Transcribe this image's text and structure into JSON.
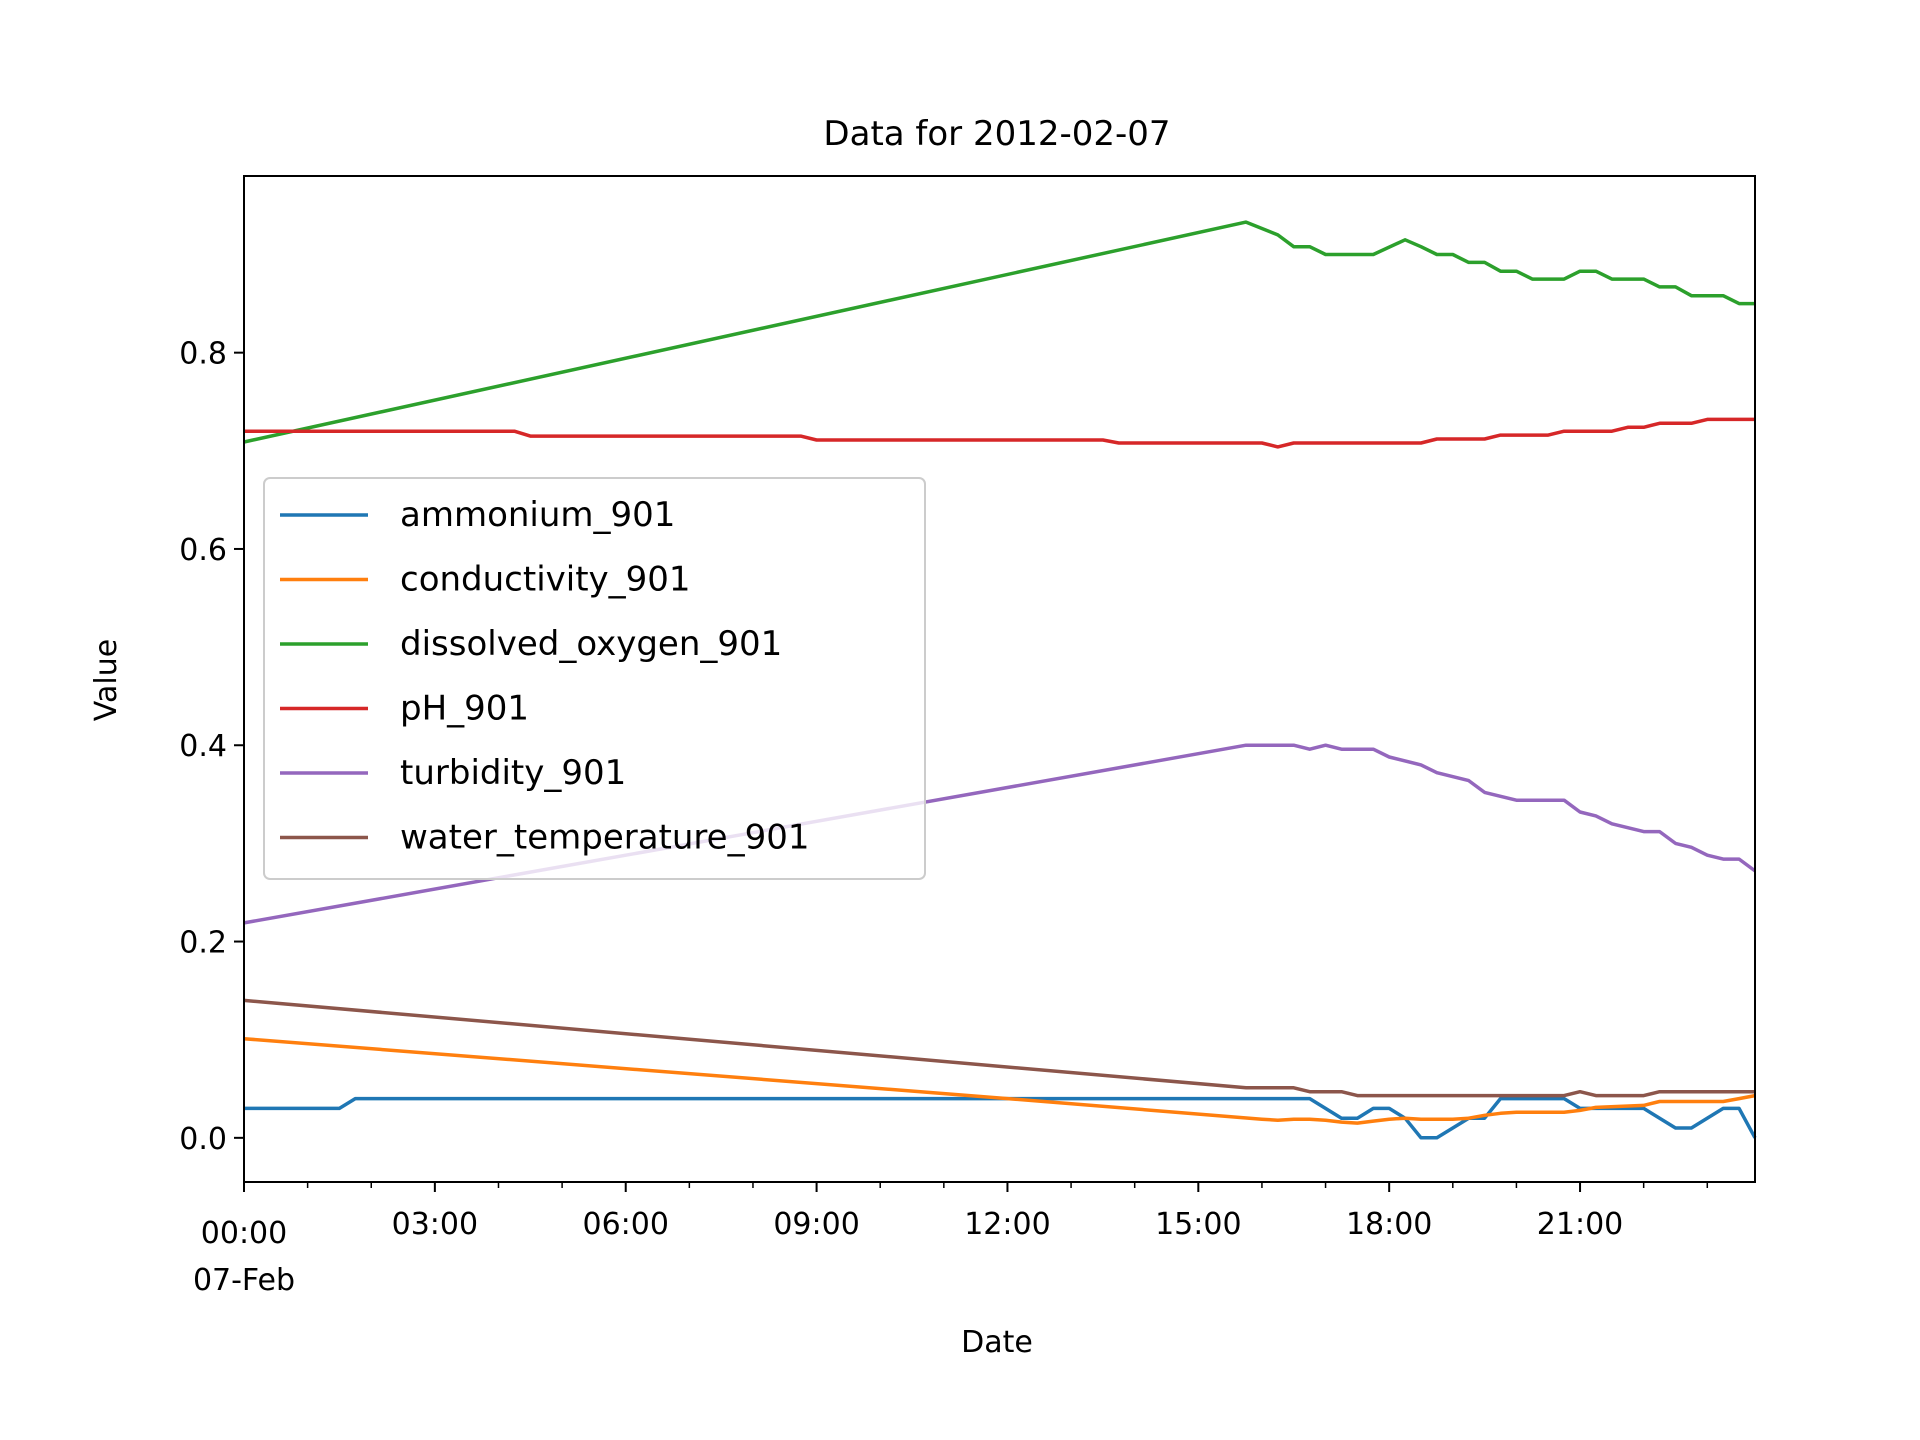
{
  "chart_data": {
    "type": "line",
    "title": "Data for 2012-02-07",
    "xlabel": "Date",
    "ylabel": "Value",
    "xlim": [
      "2012-02-07 00:00",
      "2012-02-07 23:45"
    ],
    "ylim": [
      -0.045,
      0.98
    ],
    "x_tick_labels": [
      "00:00",
      "03:00",
      "06:00",
      "09:00",
      "12:00",
      "15:00",
      "18:00",
      "21:00"
    ],
    "x_tick_sublabel": "07-Feb",
    "y_tick_labels": [
      "0.0",
      "0.2",
      "0.4",
      "0.6",
      "0.8"
    ],
    "grid": false,
    "legend_position": "center-left",
    "series": [
      {
        "name": "ammonium_901",
        "color": "#1f77b4",
        "points": [
          [
            "00:00",
            0.03
          ],
          [
            "01:30",
            0.03
          ],
          [
            "01:45",
            0.04
          ],
          [
            "16:45",
            0.04
          ],
          [
            "17:15",
            0.02
          ],
          [
            "17:30",
            0.02
          ],
          [
            "17:45",
            0.03
          ],
          [
            "18:00",
            0.03
          ],
          [
            "18:15",
            0.02
          ],
          [
            "18:30",
            0.0
          ],
          [
            "18:45",
            0.0
          ],
          [
            "19:15",
            0.02
          ],
          [
            "19:30",
            0.02
          ],
          [
            "19:45",
            0.04
          ],
          [
            "20:45",
            0.04
          ],
          [
            "21:00",
            0.03
          ],
          [
            "22:00",
            0.03
          ],
          [
            "22:30",
            0.01
          ],
          [
            "22:45",
            0.01
          ],
          [
            "23:15",
            0.03
          ],
          [
            "23:30",
            0.03
          ],
          [
            "23:45",
            0.0
          ]
        ]
      },
      {
        "name": "conductivity_901",
        "color": "#ff7f0e",
        "points": [
          [
            "00:00",
            0.101
          ],
          [
            "12:00",
            0.04
          ],
          [
            "16:00",
            0.019
          ],
          [
            "16:15",
            0.018
          ],
          [
            "16:30",
            0.019
          ],
          [
            "16:45",
            0.019
          ],
          [
            "17:00",
            0.018
          ],
          [
            "17:15",
            0.016
          ],
          [
            "17:30",
            0.015
          ],
          [
            "17:45",
            0.017
          ],
          [
            "18:00",
            0.019
          ],
          [
            "18:15",
            0.02
          ],
          [
            "18:30",
            0.019
          ],
          [
            "18:45",
            0.019
          ],
          [
            "19:00",
            0.019
          ],
          [
            "19:15",
            0.02
          ],
          [
            "19:30",
            0.023
          ],
          [
            "19:45",
            0.025
          ],
          [
            "20:00",
            0.026
          ],
          [
            "20:45",
            0.026
          ],
          [
            "21:00",
            0.028
          ],
          [
            "21:15",
            0.031
          ],
          [
            "22:00",
            0.033
          ],
          [
            "22:15",
            0.037
          ],
          [
            "23:15",
            0.037
          ],
          [
            "23:30",
            0.04
          ],
          [
            "23:45",
            0.043
          ]
        ]
      },
      {
        "name": "dissolved_oxygen_901",
        "color": "#2ca02c",
        "points": [
          [
            "00:00",
            0.709
          ],
          [
            "15:45",
            0.933
          ],
          [
            "16:15",
            0.92
          ],
          [
            "16:30",
            0.908
          ],
          [
            "16:45",
            0.908
          ],
          [
            "17:00",
            0.9
          ],
          [
            "17:45",
            0.9
          ],
          [
            "18:15",
            0.915
          ],
          [
            "18:30",
            0.908
          ],
          [
            "18:45",
            0.9
          ],
          [
            "19:00",
            0.9
          ],
          [
            "19:15",
            0.892
          ],
          [
            "19:30",
            0.892
          ],
          [
            "19:45",
            0.883
          ],
          [
            "20:00",
            0.883
          ],
          [
            "20:15",
            0.875
          ],
          [
            "20:45",
            0.875
          ],
          [
            "21:00",
            0.883
          ],
          [
            "21:15",
            0.883
          ],
          [
            "21:30",
            0.875
          ],
          [
            "22:00",
            0.875
          ],
          [
            "22:15",
            0.867
          ],
          [
            "22:30",
            0.867
          ],
          [
            "22:45",
            0.858
          ],
          [
            "23:15",
            0.858
          ],
          [
            "23:30",
            0.85
          ],
          [
            "23:45",
            0.85
          ]
        ]
      },
      {
        "name": "pH_901",
        "color": "#d62728",
        "points": [
          [
            "00:00",
            0.72
          ],
          [
            "04:15",
            0.72
          ],
          [
            "04:30",
            0.715
          ],
          [
            "08:45",
            0.715
          ],
          [
            "09:00",
            0.711
          ],
          [
            "13:30",
            0.711
          ],
          [
            "13:45",
            0.708
          ],
          [
            "16:00",
            0.708
          ],
          [
            "16:15",
            0.704
          ],
          [
            "16:30",
            0.708
          ],
          [
            "18:30",
            0.708
          ],
          [
            "18:45",
            0.712
          ],
          [
            "19:30",
            0.712
          ],
          [
            "19:45",
            0.716
          ],
          [
            "20:30",
            0.716
          ],
          [
            "20:45",
            0.72
          ],
          [
            "21:30",
            0.72
          ],
          [
            "21:45",
            0.724
          ],
          [
            "22:00",
            0.724
          ],
          [
            "22:15",
            0.728
          ],
          [
            "22:45",
            0.728
          ],
          [
            "23:00",
            0.732
          ],
          [
            "23:45",
            0.732
          ]
        ]
      },
      {
        "name": "turbidity_901",
        "color": "#9467bd",
        "points": [
          [
            "00:00",
            0.219
          ],
          [
            "15:45",
            0.4
          ],
          [
            "16:30",
            0.4
          ],
          [
            "16:45",
            0.396
          ],
          [
            "17:00",
            0.4
          ],
          [
            "17:15",
            0.396
          ],
          [
            "17:45",
            0.396
          ],
          [
            "18:00",
            0.388
          ],
          [
            "18:30",
            0.38
          ],
          [
            "18:45",
            0.372
          ],
          [
            "19:15",
            0.364
          ],
          [
            "19:30",
            0.352
          ],
          [
            "19:45",
            0.348
          ],
          [
            "20:00",
            0.344
          ],
          [
            "20:45",
            0.344
          ],
          [
            "21:00",
            0.332
          ],
          [
            "21:15",
            0.328
          ],
          [
            "21:30",
            0.32
          ],
          [
            "22:00",
            0.312
          ],
          [
            "22:15",
            0.312
          ],
          [
            "22:30",
            0.3
          ],
          [
            "22:45",
            0.296
          ],
          [
            "23:00",
            0.288
          ],
          [
            "23:15",
            0.284
          ],
          [
            "23:30",
            0.284
          ],
          [
            "23:45",
            0.272
          ]
        ]
      },
      {
        "name": "water_temperature_901",
        "color": "#8c564b",
        "points": [
          [
            "00:00",
            0.14
          ],
          [
            "15:45",
            0.051
          ],
          [
            "16:30",
            0.051
          ],
          [
            "16:45",
            0.047
          ],
          [
            "17:15",
            0.047
          ],
          [
            "17:30",
            0.043
          ],
          [
            "20:45",
            0.043
          ],
          [
            "21:00",
            0.047
          ],
          [
            "21:15",
            0.043
          ],
          [
            "22:00",
            0.043
          ],
          [
            "22:15",
            0.047
          ],
          [
            "23:45",
            0.047
          ]
        ]
      }
    ]
  }
}
